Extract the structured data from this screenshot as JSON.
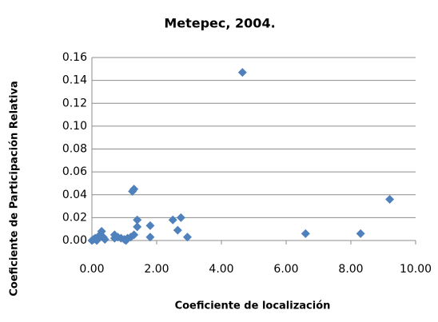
{
  "chart_data": {
    "type": "scatter",
    "title": "Metepec, 2004.",
    "x_label": "Coeficiente de localización",
    "y_label": "Coeficiente de Participación Relativa",
    "color": "#4f81bd",
    "grid": true,
    "xlim": [
      0,
      10
    ],
    "ylim": [
      0,
      0.16
    ],
    "xticks": [
      {
        "value": 0,
        "label": "0.00"
      },
      {
        "value": 2,
        "label": "2.00"
      },
      {
        "value": 4,
        "label": "4.00"
      },
      {
        "value": 6,
        "label": "6.00"
      },
      {
        "value": 8,
        "label": "8.00"
      },
      {
        "value": 10,
        "label": "10.00"
      }
    ],
    "yticks": [
      {
        "value": 0,
        "label": "0.00"
      },
      {
        "value": 0.02,
        "label": "0.02"
      },
      {
        "value": 0.04,
        "label": "0.04"
      },
      {
        "value": 0.06,
        "label": "0.06"
      },
      {
        "value": 0.08,
        "label": "0.08"
      },
      {
        "value": 0.1,
        "label": "0.10"
      },
      {
        "value": 0.12,
        "label": "0.12"
      },
      {
        "value": 0.14,
        "label": "0.14"
      },
      {
        "value": 0.16,
        "label": "0.16"
      }
    ],
    "x": [
      4.65,
      9.2,
      8.3,
      6.6,
      2.75,
      2.5,
      2.65,
      2.95,
      1.8,
      1.8,
      1.4,
      1.4,
      1.3,
      1.25,
      1.3,
      1.2,
      1.1,
      1.0,
      0.9,
      0.8,
      0.7,
      0.7,
      0.3,
      0.25,
      0.35,
      0.2,
      0.1,
      0.05,
      0.0,
      0.15,
      0.4,
      1.05
    ],
    "values": [
      0.147,
      0.036,
      0.006,
      0.006,
      0.02,
      0.018,
      0.009,
      0.003,
      0.013,
      0.003,
      0.018,
      0.012,
      0.045,
      0.043,
      0.005,
      0.003,
      0.002,
      0.001,
      0.002,
      0.003,
      0.005,
      0.002,
      0.008,
      0.005,
      0.003,
      0.002,
      0.002,
      0.001,
      0.0,
      0.0,
      0.001,
      0.0
    ]
  }
}
